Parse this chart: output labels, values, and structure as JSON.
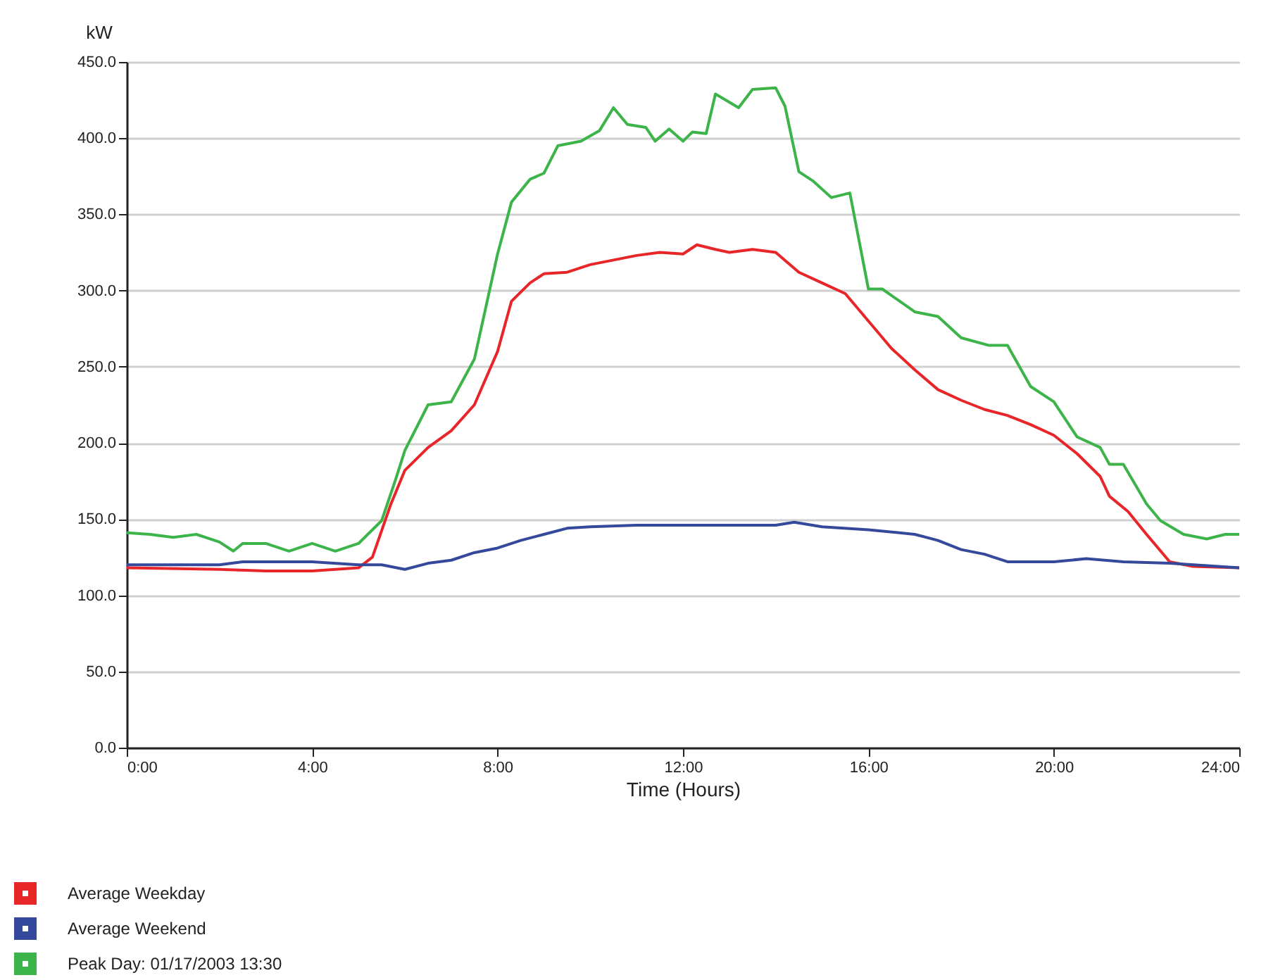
{
  "chart_data": {
    "type": "line",
    "xlabel": "Time (Hours)",
    "ylabel": "kW",
    "xlim": [
      0,
      24
    ],
    "xticks": [
      {
        "value": 0,
        "label": "0:00"
      },
      {
        "value": 4,
        "label": "4:00"
      },
      {
        "value": 8,
        "label": "8:00"
      },
      {
        "value": 12,
        "label": "12:00"
      },
      {
        "value": 16,
        "label": "16:00"
      },
      {
        "value": 20,
        "label": "20:00"
      },
      {
        "value": 24,
        "label": "24:00"
      }
    ],
    "ylim": [
      0,
      450
    ],
    "yticks": [
      {
        "value": 0,
        "label": "0.0"
      },
      {
        "value": 50,
        "label": "50.0"
      },
      {
        "value": 100,
        "label": "100.0"
      },
      {
        "value": 150,
        "label": "150.0"
      },
      {
        "value": 200,
        "label": "200.0"
      },
      {
        "value": 250,
        "label": "250.0"
      },
      {
        "value": 300,
        "label": "300.0"
      },
      {
        "value": 350,
        "label": "350.0"
      },
      {
        "value": 400,
        "label": "400.0"
      },
      {
        "value": 450,
        "label": "450.0"
      }
    ],
    "grid": "y",
    "legend": "bottom left",
    "series": [
      {
        "name": "Average Weekday",
        "color": "#e8262a",
        "x": [
          0,
          2,
          3,
          4,
          5,
          5.3,
          5.7,
          6,
          6.5,
          7,
          7.5,
          8,
          8.3,
          8.7,
          9,
          9.5,
          10,
          10.5,
          11,
          11.5,
          12,
          12.3,
          12.7,
          13,
          13.5,
          14,
          14.5,
          15,
          15.5,
          16,
          16.5,
          17,
          17.5,
          18,
          18.5,
          19,
          19.5,
          20,
          20.5,
          21,
          21.2,
          21.6,
          22,
          22.5,
          23,
          24
        ],
        "values": [
          118,
          117,
          116,
          116,
          118,
          125,
          160,
          182,
          197,
          208,
          225,
          260,
          293,
          305,
          311,
          312,
          317,
          320,
          323,
          325,
          324,
          330,
          327,
          325,
          327,
          325,
          312,
          305,
          298,
          280,
          262,
          248,
          235,
          228,
          222,
          218,
          212,
          205,
          193,
          178,
          165,
          155,
          140,
          122,
          119,
          118
        ]
      },
      {
        "name": "Average Weekend",
        "color": "#34499b",
        "x": [
          0,
          2,
          2.5,
          4,
          5,
          5.5,
          6,
          6.5,
          7,
          7.5,
          8,
          8.5,
          9,
          9.5,
          10,
          11,
          12,
          13,
          14,
          14.4,
          15,
          16,
          17,
          17.5,
          18,
          18.5,
          19,
          20,
          20.7,
          21.5,
          22.5,
          24
        ],
        "values": [
          120,
          120,
          122,
          122,
          120,
          120,
          117,
          121,
          123,
          128,
          131,
          136,
          140,
          144,
          145,
          146,
          146,
          146,
          146,
          148,
          145,
          143,
          140,
          136,
          130,
          127,
          122,
          122,
          124,
          122,
          121,
          118
        ]
      },
      {
        "name": "Peak Day: 01/17/2003 13:30",
        "color": "#3cb44a",
        "x": [
          0,
          0.5,
          1,
          1.5,
          2,
          2.3,
          2.5,
          3,
          3.5,
          4,
          4.5,
          5,
          5.5,
          5.8,
          6,
          6.5,
          7,
          7.5,
          8,
          8.3,
          8.7,
          9,
          9.3,
          9.8,
          10.2,
          10.5,
          10.8,
          11.2,
          11.4,
          11.7,
          12,
          12.2,
          12.5,
          12.7,
          13.2,
          13.5,
          14,
          14.2,
          14.5,
          14.8,
          15.2,
          15.6,
          16,
          16.3,
          17,
          17.5,
          18,
          18.6,
          19,
          19.5,
          20,
          20.5,
          21,
          21.2,
          21.5,
          22,
          22.3,
          22.8,
          23.3,
          23.7,
          24
        ],
        "values": [
          141,
          140,
          138,
          140,
          135,
          129,
          134,
          134,
          129,
          134,
          129,
          134,
          149,
          176,
          195,
          225,
          227,
          255,
          324,
          358,
          373,
          377,
          395,
          398,
          405,
          420,
          409,
          407,
          398,
          406,
          398,
          404,
          403,
          429,
          420,
          432,
          433,
          421,
          378,
          372,
          361,
          364,
          301,
          301,
          286,
          283,
          269,
          264,
          264,
          237,
          227,
          204,
          197,
          186,
          186,
          160,
          149,
          140,
          137,
          140,
          140
        ]
      }
    ]
  }
}
